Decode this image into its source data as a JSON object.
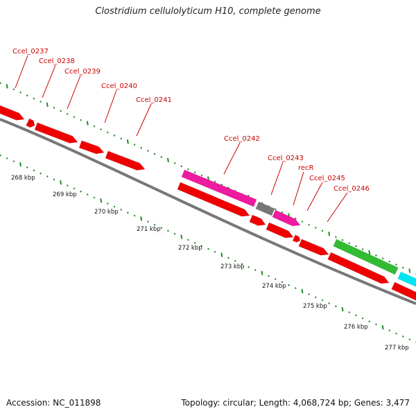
{
  "title": "Clostridium cellulolyticum H10, complete genome",
  "footer": {
    "accession": "Accession: NC_011898",
    "stats": "Topology: circular; Length: 4,068,724 bp; Genes: 3,477"
  },
  "colors": {
    "cds": "#ee0000",
    "rna": "#ee1aa0",
    "other": "#777777",
    "green": "#33bb33",
    "cyan": "#00e6f0",
    "backbone": "#777777",
    "tick": "#228b22",
    "label": "#cc0000"
  },
  "scale_labels": [
    "268 kbp",
    "269 kbp",
    "270 kbp",
    "271 kbp",
    "272 kbp",
    "273 kbp",
    "274 kbp",
    "275 kbp",
    "276 kbp",
    "277 kbp"
  ],
  "gene_labels": [
    "Ccel_0237",
    "Ccel_0238",
    "Ccel_0239",
    "Ccel_0240",
    "Ccel_0241",
    "Ccel_0242",
    "Ccel_0243",
    "recR",
    "Ccel_0245",
    "Ccel_0246"
  ]
}
